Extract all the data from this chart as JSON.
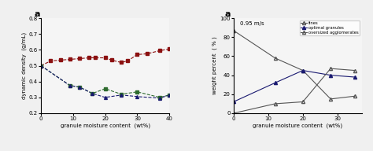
{
  "left": {
    "panel_label": "a",
    "series1": {
      "x": [
        0,
        3,
        6,
        9,
        12,
        15,
        17,
        20,
        22,
        25,
        27,
        30,
        33,
        37,
        40
      ],
      "y": [
        0.5,
        0.53,
        0.535,
        0.54,
        0.545,
        0.55,
        0.55,
        0.55,
        0.535,
        0.52,
        0.53,
        0.57,
        0.575,
        0.595,
        0.605
      ],
      "color": "#8B1010",
      "marker": "s",
      "markersize": 2.8,
      "linestyle": "--",
      "linewidth": 0.8
    },
    "series2": {
      "x": [
        0,
        9,
        12,
        16,
        20,
        25,
        30,
        37,
        40
      ],
      "y": [
        0.5,
        0.375,
        0.365,
        0.325,
        0.355,
        0.32,
        0.335,
        0.3,
        0.315
      ],
      "color": "#2E6B2E",
      "marker": "s",
      "markersize": 2.8,
      "linestyle": "--",
      "linewidth": 0.8
    },
    "series3": {
      "x": [
        0,
        9,
        12,
        16,
        20,
        25,
        30,
        37,
        40
      ],
      "y": [
        0.5,
        0.375,
        0.365,
        0.325,
        0.3,
        0.315,
        0.305,
        0.295,
        0.315
      ],
      "color": "#191970",
      "marker": "^",
      "markersize": 2.8,
      "linestyle": "--",
      "linewidth": 0.8
    },
    "xlabel": "granule moisture content  (wt%)",
    "ylabel": "dynamic density  (g/mL)",
    "ylim": [
      0.2,
      0.8
    ],
    "xlim": [
      0,
      40
    ],
    "yticks": [
      0.2,
      0.3,
      0.4,
      0.5,
      0.6,
      0.7,
      0.8
    ],
    "xticks": [
      0,
      10,
      20,
      30,
      40
    ]
  },
  "right": {
    "panel_label": "a",
    "annotation": "0.95 m/s",
    "series_fines": {
      "x": [
        0,
        12,
        20,
        28,
        35
      ],
      "y": [
        87,
        58,
        45,
        15,
        18
      ],
      "color": "#555555",
      "marker": "^",
      "markersize": 3,
      "markerfacecolor": "none",
      "linestyle": "-",
      "linewidth": 0.8,
      "label": "fines"
    },
    "series_optimal": {
      "x": [
        0,
        12,
        20,
        28,
        35
      ],
      "y": [
        12,
        32,
        45,
        40,
        38
      ],
      "color": "#191970",
      "marker": "^",
      "markersize": 3,
      "markerfacecolor": "#191970",
      "linestyle": "-",
      "linewidth": 0.8,
      "label": "optimal granules"
    },
    "series_oversized": {
      "x": [
        0,
        12,
        20,
        28,
        35
      ],
      "y": [
        0,
        10,
        12,
        47,
        45
      ],
      "color": "#555555",
      "marker": "^",
      "markersize": 3,
      "markerfacecolor": "none",
      "linestyle": "-",
      "linewidth": 0.8,
      "label": "oversized agglomerates"
    },
    "xlabel": "granule moisture content  (wt%)",
    "ylabel": "weight percent  ( % )",
    "ylim": [
      0,
      100
    ],
    "xlim": [
      0,
      37
    ],
    "yticks": [
      0,
      20,
      40,
      60,
      80,
      100
    ],
    "xticks": [
      0,
      10,
      20,
      30
    ]
  },
  "fig_width": 4.74,
  "fig_height": 1.92,
  "dpi": 100
}
